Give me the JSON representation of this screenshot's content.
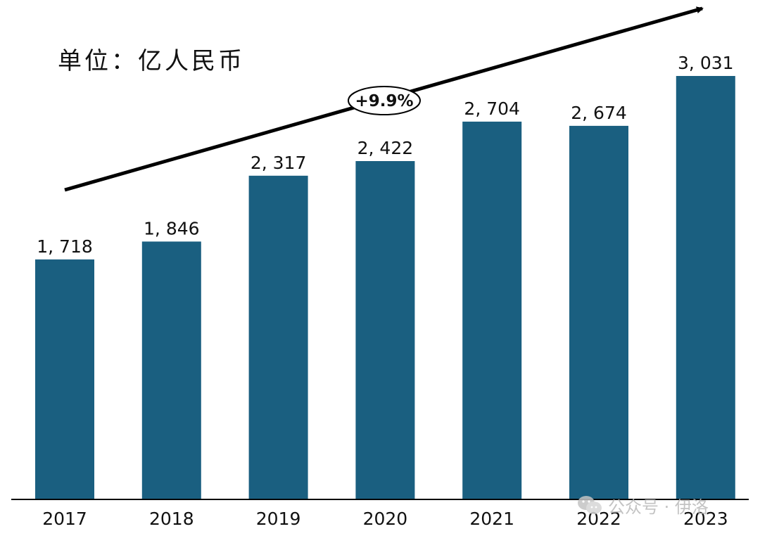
{
  "unit_text": "单位：亿人民币",
  "growth_text": "+9.9%",
  "watermark_text": "公众号 · 伊洛",
  "colors": {
    "bar": "#1a5f80",
    "axis": "#000000",
    "text": "#111111"
  },
  "chart_data": {
    "type": "bar",
    "categories": [
      "2017",
      "2018",
      "2019",
      "2020",
      "2021",
      "2022",
      "2023"
    ],
    "values": [
      1718,
      1846,
      2317,
      2422,
      2704,
      2674,
      3031
    ],
    "value_labels": [
      "1, 718",
      "1, 846",
      "2, 317",
      "2, 422",
      "2, 704",
      "2, 674",
      "3, 031"
    ],
    "ylim": [
      0,
      3031
    ],
    "grid": false,
    "legend": "none",
    "annotations": [
      "单位：亿人民币",
      "+9.9%"
    ]
  }
}
